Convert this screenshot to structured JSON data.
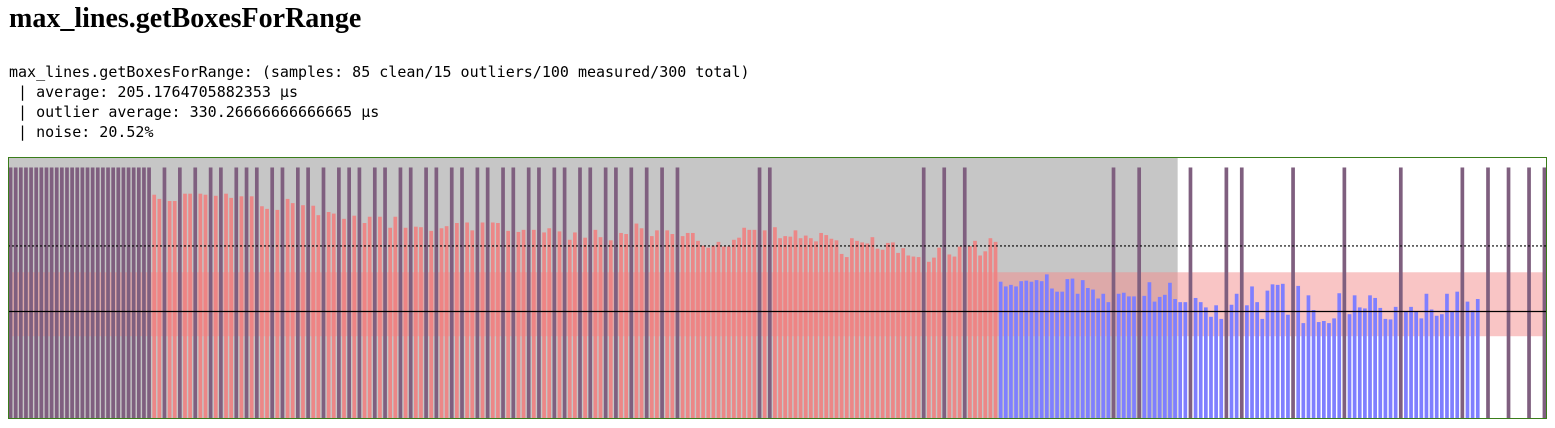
{
  "page": {
    "title": "max_lines.getBoxesForRange",
    "summary": {
      "line1": "max_lines.getBoxesForRange: (samples: 85 clean/15 outliers/100 measured/300 total)",
      "line2": " | average: 205.1764705882353 µs",
      "line3": " | outlier average: 330.26666666666665 µs",
      "line4": " | noise: 20.52%"
    }
  },
  "chart_data": {
    "type": "bar",
    "title": "",
    "xlabel": "",
    "ylabel": "",
    "ylim": [
      0,
      500
    ],
    "grid": false,
    "legend": "none",
    "colors": {
      "clean": "#7f7fff",
      "warmup": "#f08080",
      "outlier": "#7f5f7f",
      "band": "#f48c8c",
      "gray_region": "#c6c6c6",
      "frame": "#3a7d1a",
      "mean_line": "#000000",
      "threshold_line": "#000000"
    },
    "mean": 205.18,
    "threshold": 330.27,
    "band_range": [
      158,
      280
    ],
    "gray_region_range": [
      0,
      228
    ],
    "series": [
      {
        "name": "clean",
        "values": [
          262,
          253,
          256,
          253,
          263,
          264,
          262,
          265,
          263,
          276,
          249,
          243,
          243,
          267,
          268,
          239,
          265,
          250,
          247,
          230,
          239,
          223,
          239,
          241,
          234,
          234,
          235,
          261,
          224,
          233,
          237,
          260,
          229,
          223,
          223,
          231,
          223,
          213,
          195,
          217,
          191,
          218,
          239,
          217,
          253,
          223,
          191,
          245,
          257,
          256,
          258,
          199,
          254,
          183,
          236,
          208,
          185,
          187,
          183,
          192,
          240,
          200,
          236,
          213,
          211,
          236,
          231,
          212,
          191,
          190,
          214,
          206,
          214,
          206,
          192,
          239,
          209,
          197,
          200,
          239,
          206,
          243,
          224,
          207,
          229
        ]
      },
      {
        "name": "warmup",
        "values": [
          428,
          420,
          416,
          416,
          430,
          430,
          430,
          428,
          426,
          430,
          422,
          425,
          425,
          406,
          401,
          399,
          420,
          412,
          408,
          407,
          389,
          395,
          392,
          382,
          388,
          374,
          386,
          386,
          365,
          386,
          365,
          367,
          366,
          359,
          364,
          368,
          374,
          375,
          360,
          375,
          375,
          374,
          359,
          357,
          361,
          361,
          356,
          364,
          358,
          342,
          356,
          346,
          361,
          347,
          341,
          355,
          353,
          373,
          364,
          349,
          360,
          360,
          353,
          349,
          355,
          355,
          340,
          331,
          327,
          331,
          338,
          329,
          329,
          342,
          346,
          365,
          361,
          361,
          360,
          366,
          345,
          349,
          348,
          360,
          345,
          350,
          345,
          339,
          355,
          351,
          344,
          341,
          315,
          309,
          345,
          340,
          337,
          335,
          347,
          325,
          323,
          336,
          337,
          317,
          326,
          312,
          310,
          309,
          300,
          308,
          327,
          314,
          310,
          329,
          330,
          340,
          312,
          320,
          345,
          338
        ]
      },
      {
        "name": "outlier",
        "values": [
          480,
          480,
          480,
          480,
          480,
          480,
          480,
          480,
          480,
          480,
          480,
          480,
          480,
          480,
          480,
          480,
          480,
          480,
          480,
          480,
          480,
          480,
          480,
          480,
          480,
          480,
          480,
          480,
          480,
          480,
          480,
          480,
          480,
          480,
          480,
          480,
          480,
          480,
          480,
          480,
          480,
          480,
          480,
          480,
          480,
          480,
          480,
          480,
          480,
          480,
          480,
          480,
          480,
          480,
          480,
          480,
          480,
          480,
          480,
          480,
          480,
          480,
          480,
          480,
          480,
          480,
          480,
          480,
          480,
          480,
          480,
          480,
          480,
          480,
          480,
          480,
          480,
          480,
          480,
          480,
          480,
          480,
          480,
          480,
          480,
          480,
          480,
          480,
          480,
          480,
          480,
          480,
          480,
          480,
          480,
          480,
          480,
          480,
          480,
          480
        ]
      }
    ]
  }
}
